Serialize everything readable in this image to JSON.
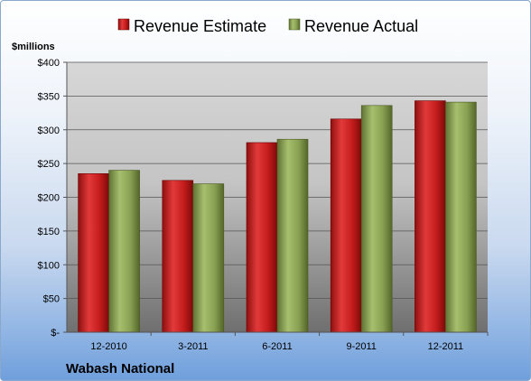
{
  "chart_data": {
    "type": "bar",
    "categories": [
      "12-2010",
      "3-2011",
      "6-2011",
      "9-2011",
      "12-2011"
    ],
    "series": [
      {
        "name": "Revenue Estimate",
        "values": [
          235,
          225,
          281,
          316,
          343
        ],
        "color": "#cc1f1f"
      },
      {
        "name": "Revenue Actual",
        "values": [
          240,
          220,
          286,
          336,
          341
        ],
        "color": "#8fa85a"
      }
    ],
    "ylabel": "$millions",
    "ylim": [
      0,
      400
    ],
    "yticks": [
      0,
      50,
      100,
      150,
      200,
      250,
      300,
      350,
      400
    ],
    "ytick_labels": [
      "$-",
      "$50",
      "$100",
      "$150",
      "$200",
      "$250",
      "$300",
      "$350",
      "$400"
    ],
    "grid": true,
    "legend_position": "top",
    "footer": "Wabash National"
  }
}
